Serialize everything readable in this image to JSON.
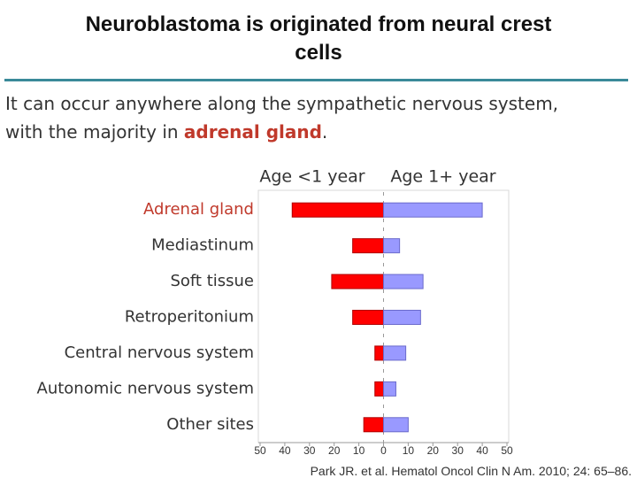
{
  "slide": {
    "title": "Neuroblastoma is originated from neural crest cells",
    "body_line1": "It can occur anywhere along the sympathetic nervous system,",
    "body_line2_start": "with the majority in ",
    "body_highlight": "adrenal gland",
    "body_line2_end": ".",
    "citation": "Park JR. et al. Hematol Oncol Clin N Am. 2010; 24: 65–86."
  },
  "chart_data": {
    "type": "butterfly-bar",
    "categories": [
      "Adrenal gland",
      "Mediastinum",
      "Soft tissue",
      "Retroperitonium",
      "Central nervous system",
      "Autonomic nervous system",
      "Other sites"
    ],
    "category_label_colors": [
      "#c0392b",
      "#333333",
      "#333333",
      "#333333",
      "#333333",
      "#333333",
      "#333333"
    ],
    "series": [
      {
        "name": "Age <1 year",
        "color": "#ff0000",
        "values": [
          -37,
          -12.5,
          -21,
          -12.5,
          -3.5,
          -3.5,
          -8
        ]
      },
      {
        "name": "Age 1+ year",
        "color": "#9999ff",
        "values": [
          40,
          6.5,
          16,
          15,
          9,
          5,
          10
        ]
      }
    ],
    "xlim": [
      -50,
      50
    ],
    "xticks": [
      {
        "value": -50,
        "label": "50"
      },
      {
        "value": -40,
        "label": "40"
      },
      {
        "value": -30,
        "label": "30"
      },
      {
        "value": -20,
        "label": "20"
      },
      {
        "value": -10,
        "label": "10"
      },
      0,
      10,
      20,
      30,
      40,
      50
    ]
  }
}
